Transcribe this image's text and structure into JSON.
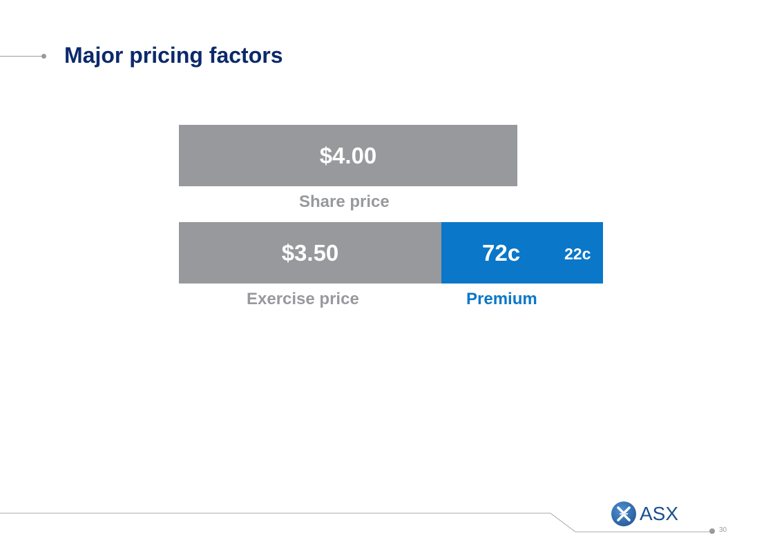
{
  "slide": {
    "title": "Major pricing factors",
    "page_number": "30"
  },
  "bars": {
    "share_price": {
      "value": "$4.00",
      "label": "Share price"
    },
    "exercise_price": {
      "value": "$3.50",
      "label": "Exercise price"
    },
    "premium": {
      "value": "72c",
      "sub_value": "22c",
      "label": "Premium"
    }
  },
  "logo": {
    "text": "ASX"
  },
  "colors": {
    "title": "#0b2a6b",
    "bar_gray": "#98999d",
    "premium_blue": "#0a77c9"
  }
}
